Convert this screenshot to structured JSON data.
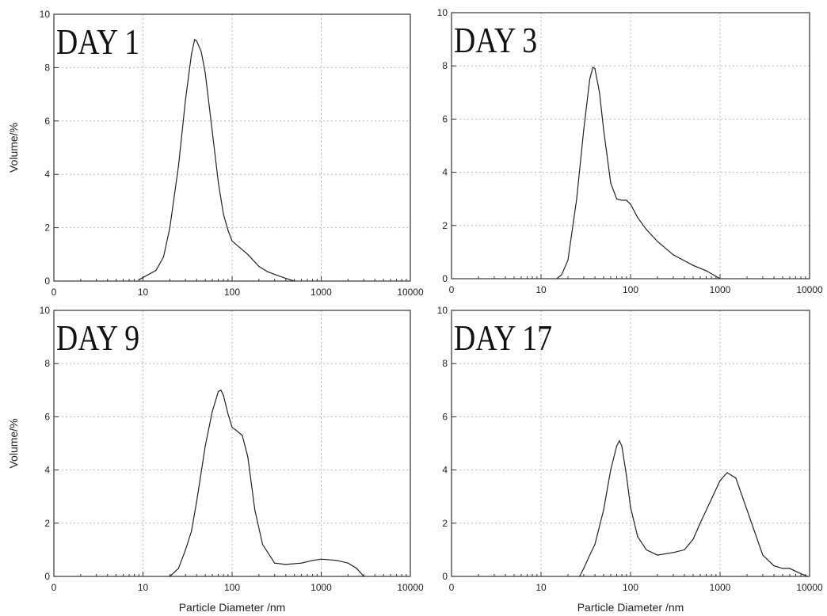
{
  "chart_data": [
    {
      "type": "line",
      "title": "DAY 1",
      "xlabel": "",
      "ylabel": "Volume/%",
      "xscale": "log",
      "xlim": [
        1,
        10000
      ],
      "ylim": [
        0,
        10
      ],
      "xticks": [
        "0",
        "10",
        "100",
        "1000",
        "10000"
      ],
      "yticks": [
        "0",
        "2",
        "4",
        "6",
        "8",
        "10"
      ],
      "grid": true,
      "x": [
        9,
        14,
        17,
        20,
        25,
        30,
        35,
        38,
        40,
        45,
        50,
        60,
        70,
        80,
        90,
        100,
        150,
        200,
        250,
        300,
        400,
        500
      ],
      "y": [
        0.05,
        0.4,
        0.9,
        2.0,
        4.3,
        6.8,
        8.5,
        9.05,
        9.0,
        8.6,
        7.8,
        5.6,
        3.7,
        2.5,
        1.9,
        1.5,
        1.0,
        0.55,
        0.35,
        0.25,
        0.1,
        0
      ]
    },
    {
      "type": "line",
      "title": "DAY 3",
      "xlabel": "",
      "ylabel": "",
      "xscale": "log",
      "xlim": [
        1,
        10000
      ],
      "ylim": [
        0,
        10
      ],
      "xticks": [
        "0",
        "10",
        "100",
        "1000",
        "10000"
      ],
      "yticks": [
        "0",
        "2",
        "4",
        "6",
        "8",
        "10"
      ],
      "grid": true,
      "x": [
        15,
        17,
        20,
        25,
        30,
        35,
        38,
        40,
        45,
        50,
        60,
        70,
        80,
        90,
        100,
        120,
        150,
        200,
        300,
        500,
        700,
        1000
      ],
      "y": [
        0,
        0.15,
        0.7,
        3.0,
        5.6,
        7.5,
        7.95,
        7.9,
        7.0,
        5.6,
        3.6,
        3.0,
        2.95,
        2.95,
        2.8,
        2.3,
        1.85,
        1.4,
        0.9,
        0.5,
        0.3,
        0
      ]
    },
    {
      "type": "line",
      "title": "DAY 9",
      "xlabel": "Particle Diameter /nm",
      "ylabel": "Volume/%",
      "xscale": "log",
      "xlim": [
        1,
        10000
      ],
      "ylim": [
        0,
        10
      ],
      "xticks": [
        "0",
        "10",
        "100",
        "1000",
        "10000"
      ],
      "yticks": [
        "0",
        "2",
        "4",
        "6",
        "8",
        "10"
      ],
      "grid": true,
      "x": [
        20,
        25,
        30,
        35,
        40,
        50,
        60,
        70,
        75,
        80,
        90,
        100,
        110,
        130,
        150,
        180,
        220,
        300,
        400,
        600,
        800,
        1000,
        1500,
        2000,
        2500,
        3000
      ],
      "y": [
        0,
        0.3,
        1.0,
        1.7,
        2.8,
        4.9,
        6.2,
        6.95,
        7.0,
        6.8,
        6.1,
        5.6,
        5.5,
        5.3,
        4.5,
        2.5,
        1.2,
        0.5,
        0.45,
        0.5,
        0.6,
        0.65,
        0.6,
        0.5,
        0.3,
        0
      ]
    },
    {
      "type": "line",
      "title": "DAY 17",
      "xlabel": "Particle Diameter /nm",
      "ylabel": "",
      "xscale": "log",
      "xlim": [
        1,
        10000
      ],
      "ylim": [
        0,
        10
      ],
      "xticks": [
        "0",
        "10",
        "100",
        "1000",
        "10000"
      ],
      "yticks": [
        "0",
        "2",
        "4",
        "6",
        "8",
        "10"
      ],
      "grid": true,
      "x": [
        27,
        30,
        35,
        40,
        50,
        60,
        70,
        75,
        80,
        90,
        100,
        120,
        150,
        200,
        300,
        400,
        500,
        600,
        800,
        1000,
        1200,
        1500,
        2000,
        3000,
        4000,
        5000,
        6000,
        8000,
        9500
      ],
      "y": [
        0,
        0.3,
        0.8,
        1.2,
        2.5,
        4.0,
        4.9,
        5.1,
        4.9,
        3.8,
        2.6,
        1.5,
        1.0,
        0.8,
        0.9,
        1.0,
        1.4,
        2.0,
        2.9,
        3.6,
        3.9,
        3.7,
        2.5,
        0.8,
        0.4,
        0.3,
        0.3,
        0.1,
        0
      ]
    }
  ]
}
